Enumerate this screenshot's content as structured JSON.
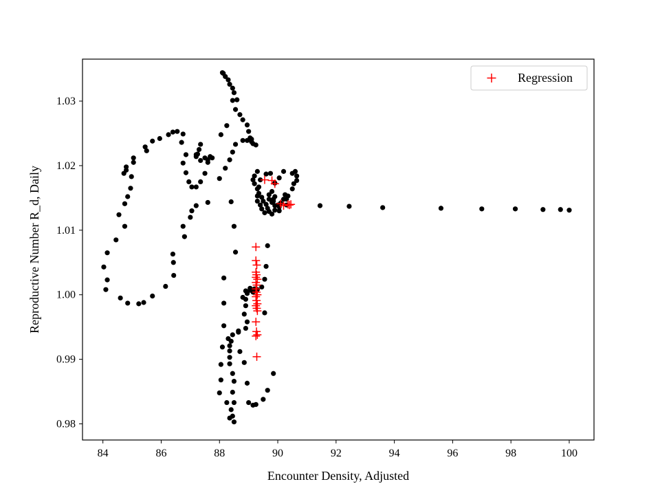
{
  "chart_data": {
    "type": "scatter",
    "title": "",
    "xlabel": "Encounter Density, Adjusted",
    "ylabel": "Reproductive Number R_d, Daily",
    "xlim": [
      83.3,
      100.85
    ],
    "ylim": [
      0.9775,
      1.0365
    ],
    "xticks": [
      84,
      86,
      88,
      90,
      92,
      94,
      96,
      98,
      100
    ],
    "yticks": [
      0.98,
      0.99,
      1.0,
      1.01,
      1.02,
      1.03
    ],
    "ytick_labels": [
      "0.98",
      "0.99",
      "1.00",
      "1.01",
      "1.02",
      "1.03"
    ],
    "grid": false,
    "legend_position": "top-right",
    "colors": {
      "data": "#000000",
      "regression": "#ff0000",
      "axes": "#000000"
    },
    "series": [
      {
        "marker": "dot",
        "color": "#000000",
        "points": [
          [
            100.0,
            1.0131
          ],
          [
            99.7,
            1.0132
          ],
          [
            99.1,
            1.0132
          ],
          [
            98.15,
            1.0133
          ],
          [
            97.0,
            1.0133
          ],
          [
            95.6,
            1.0134
          ],
          [
            93.6,
            1.0135
          ],
          [
            92.45,
            1.0137
          ],
          [
            91.45,
            1.0138
          ],
          [
            90.3,
            1.0139
          ],
          [
            88.4,
            1.0144
          ],
          [
            87.6,
            1.0143
          ],
          [
            87.2,
            1.0138
          ],
          [
            87.05,
            1.013
          ],
          [
            87.0,
            1.012
          ],
          [
            86.8,
            1.009
          ],
          [
            86.75,
            1.0106
          ],
          [
            86.4,
            1.0063
          ],
          [
            86.42,
            1.005
          ],
          [
            86.43,
            1.003
          ],
          [
            86.15,
            1.0013
          ],
          [
            85.7,
            0.9998
          ],
          [
            85.4,
            0.9988
          ],
          [
            85.23,
            0.9986
          ],
          [
            84.85,
            0.9987
          ],
          [
            84.6,
            0.9995
          ],
          [
            84.1,
            1.0008
          ],
          [
            84.15,
            1.0023
          ],
          [
            84.03,
            1.0043
          ],
          [
            84.15,
            1.0065
          ],
          [
            84.45,
            1.0085
          ],
          [
            84.75,
            1.0106
          ],
          [
            84.55,
            1.0124
          ],
          [
            84.75,
            1.0141
          ],
          [
            84.85,
            1.0152
          ],
          [
            84.95,
            1.0165
          ],
          [
            84.98,
            1.0183
          ],
          [
            84.72,
            1.0188
          ],
          [
            84.8,
            1.0193
          ],
          [
            84.8,
            1.0198
          ],
          [
            85.05,
            1.0205
          ],
          [
            85.05,
            1.0212
          ],
          [
            85.5,
            1.0223
          ],
          [
            85.45,
            1.0229
          ],
          [
            85.95,
            1.0242
          ],
          [
            85.7,
            1.0238
          ],
          [
            86.25,
            1.0248
          ],
          [
            86.4,
            1.0252
          ],
          [
            86.55,
            1.0253
          ],
          [
            86.75,
            1.0249
          ],
          [
            86.7,
            1.0236
          ],
          [
            86.85,
            1.0217
          ],
          [
            86.75,
            1.0204
          ],
          [
            86.85,
            1.0189
          ],
          [
            86.95,
            1.0175
          ],
          [
            87.05,
            1.0167
          ],
          [
            87.2,
            1.0167
          ],
          [
            87.35,
            1.0175
          ],
          [
            87.5,
            1.0188
          ],
          [
            87.6,
            1.0205
          ],
          [
            87.75,
            1.0212
          ],
          [
            87.68,
            1.0214
          ],
          [
            87.5,
            1.0212
          ],
          [
            87.35,
            1.0208
          ],
          [
            87.25,
            1.0218
          ],
          [
            87.2,
            1.0214
          ],
          [
            87.3,
            1.0225
          ],
          [
            87.35,
            1.0233
          ],
          [
            87.2,
            1.0217
          ],
          [
            87.6,
            1.0209
          ],
          [
            88.05,
            1.0248
          ],
          [
            88.25,
            1.0262
          ],
          [
            88.1,
            1.0344
          ],
          [
            88.13,
            1.0343
          ],
          [
            88.2,
            1.0338
          ],
          [
            88.3,
            1.0333
          ],
          [
            88.35,
            1.0326
          ],
          [
            88.45,
            1.032
          ],
          [
            88.5,
            1.0313
          ],
          [
            88.45,
            1.0301
          ],
          [
            88.6,
            1.0302
          ],
          [
            88.55,
            1.0287
          ],
          [
            88.7,
            1.0279
          ],
          [
            88.8,
            1.0271
          ],
          [
            88.95,
            1.0263
          ],
          [
            89.0,
            1.0253
          ],
          [
            89.1,
            1.0241
          ],
          [
            88.95,
            1.0239
          ],
          [
            88.8,
            1.0239
          ],
          [
            88.55,
            1.0233
          ],
          [
            88.45,
            1.0221
          ],
          [
            88.35,
            1.0209
          ],
          [
            88.2,
            1.0196
          ],
          [
            88.0,
            1.018
          ],
          [
            89.15,
            1.0234
          ],
          [
            89.25,
            1.0232
          ],
          [
            89.1,
            1.0237
          ],
          [
            89.05,
            1.0243
          ],
          [
            89.3,
            1.0191
          ],
          [
            89.2,
            1.0184
          ],
          [
            89.15,
            1.0178
          ],
          [
            89.2,
            1.0172
          ],
          [
            89.3,
            1.0164
          ],
          [
            89.35,
            1.0157
          ],
          [
            89.45,
            1.0151
          ],
          [
            89.5,
            1.0145
          ],
          [
            89.6,
            1.014
          ],
          [
            89.65,
            1.0134
          ],
          [
            89.7,
            1.0129
          ],
          [
            89.8,
            1.0125
          ],
          [
            89.9,
            1.0131
          ],
          [
            89.55,
            1.0127
          ],
          [
            89.45,
            1.0133
          ],
          [
            89.4,
            1.0139
          ],
          [
            89.3,
            1.0145
          ],
          [
            89.3,
            1.0153
          ],
          [
            89.35,
            1.0167
          ],
          [
            89.4,
            1.0178
          ],
          [
            89.6,
            1.0187
          ],
          [
            89.75,
            1.0188
          ],
          [
            89.9,
            1.0173
          ],
          [
            89.8,
            1.016
          ],
          [
            89.7,
            1.0155
          ],
          [
            89.7,
            1.0148
          ],
          [
            89.85,
            1.0145
          ],
          [
            89.9,
            1.0152
          ],
          [
            89.9,
            1.0138
          ],
          [
            90.05,
            1.0136
          ],
          [
            90.1,
            1.0142
          ],
          [
            90.2,
            1.0148
          ],
          [
            90.35,
            1.0153
          ],
          [
            90.5,
            1.0164
          ],
          [
            90.55,
            1.0172
          ],
          [
            90.65,
            1.0177
          ],
          [
            90.65,
            1.0184
          ],
          [
            90.6,
            1.0191
          ],
          [
            90.5,
            1.0188
          ],
          [
            90.2,
            1.0191
          ],
          [
            90.05,
            1.0181
          ],
          [
            90.25,
            1.0155
          ],
          [
            90.3,
            1.0148
          ],
          [
            89.8,
            1.0143
          ],
          [
            89.85,
            1.0148
          ],
          [
            90.0,
            1.0139
          ],
          [
            90.05,
            1.013
          ],
          [
            89.65,
            1.0076
          ],
          [
            89.6,
            1.0044
          ],
          [
            89.55,
            1.0024
          ],
          [
            89.45,
            1.0012
          ],
          [
            89.2,
            1.0009
          ],
          [
            89.05,
            1.001
          ],
          [
            88.9,
            1.0006
          ],
          [
            88.8,
            0.9996
          ],
          [
            88.9,
            0.9983
          ],
          [
            88.85,
            0.997
          ],
          [
            88.95,
            0.9958
          ],
          [
            88.9,
            0.9948
          ],
          [
            88.65,
            0.9942
          ],
          [
            88.45,
            0.9938
          ],
          [
            88.4,
            0.9928
          ],
          [
            88.3,
            0.9932
          ],
          [
            88.35,
            0.9921
          ],
          [
            88.35,
            0.9913
          ],
          [
            88.35,
            0.9903
          ],
          [
            88.35,
            0.9893
          ],
          [
            88.45,
            0.9878
          ],
          [
            88.5,
            0.9866
          ],
          [
            88.45,
            0.9849
          ],
          [
            88.5,
            0.9833
          ],
          [
            88.4,
            0.9822
          ],
          [
            88.45,
            0.9812
          ],
          [
            88.5,
            0.9803
          ],
          [
            88.35,
            0.9809
          ],
          [
            88.25,
            0.9833
          ],
          [
            88.0,
            0.9848
          ],
          [
            88.05,
            0.9868
          ],
          [
            88.05,
            0.9892
          ],
          [
            88.1,
            0.9919
          ],
          [
            88.15,
            0.9952
          ],
          [
            88.15,
            0.9987
          ],
          [
            88.15,
            1.0026
          ],
          [
            88.55,
            1.0066
          ],
          [
            88.5,
            1.0106
          ],
          [
            88.7,
            0.9912
          ],
          [
            88.85,
            0.9895
          ],
          [
            88.95,
            0.9863
          ],
          [
            89.0,
            0.9833
          ],
          [
            89.15,
            0.9829
          ],
          [
            89.25,
            0.983
          ],
          [
            89.5,
            0.9838
          ],
          [
            89.65,
            0.9852
          ],
          [
            89.85,
            0.9878
          ],
          [
            89.55,
            0.9972
          ],
          [
            89.3,
            1.0008
          ],
          [
            88.9,
            0.9993
          ],
          [
            88.95,
            1.0002
          ],
          [
            89.05,
            1.0007
          ],
          [
            89.15,
            1.0004
          ],
          [
            88.65,
            0.9944
          ]
        ]
      },
      {
        "name": "Regression",
        "marker": "plus",
        "color": "#ff0000",
        "points": [
          [
            89.55,
            1.0178
          ],
          [
            89.8,
            1.0177
          ],
          [
            89.9,
            1.0172
          ],
          [
            90.1,
            1.0141
          ],
          [
            90.2,
            1.0138
          ],
          [
            90.35,
            1.014
          ],
          [
            90.45,
            1.014
          ],
          [
            90.4,
            1.0139
          ],
          [
            89.25,
            1.0074
          ],
          [
            89.25,
            1.0053
          ],
          [
            89.28,
            1.0046
          ],
          [
            89.25,
            1.0035
          ],
          [
            89.27,
            1.0031
          ],
          [
            89.25,
            1.0027
          ],
          [
            89.3,
            1.0024
          ],
          [
            89.25,
            1.0019
          ],
          [
            89.28,
            1.0015
          ],
          [
            89.25,
            1.0009
          ],
          [
            89.27,
            1.0004
          ],
          [
            89.3,
            1.0
          ],
          [
            89.25,
            0.9997
          ],
          [
            89.27,
            0.9991
          ],
          [
            89.3,
            0.9986
          ],
          [
            89.25,
            0.9983
          ],
          [
            89.28,
            0.9979
          ],
          [
            89.3,
            0.9975
          ],
          [
            89.25,
            0.9958
          ],
          [
            89.27,
            0.9943
          ],
          [
            89.3,
            0.9938
          ],
          [
            89.25,
            0.9936
          ],
          [
            89.28,
            0.9904
          ]
        ]
      }
    ]
  }
}
